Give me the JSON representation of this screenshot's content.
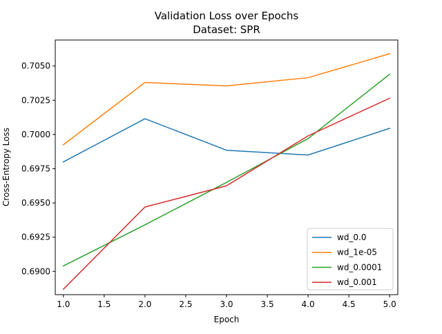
{
  "chart_data": {
    "type": "line",
    "title": "Validation Loss over Epochs",
    "subtitle": "Dataset: SPR",
    "xlabel": "Epoch",
    "ylabel": "Cross-Entropy Loss",
    "x": [
      1,
      2,
      3,
      4,
      5
    ],
    "xlim": [
      0.9,
      5.1
    ],
    "ylim": [
      0.6883,
      0.7069
    ],
    "xticks": [
      "1.0",
      "1.5",
      "2.0",
      "2.5",
      "3.0",
      "3.5",
      "4.0",
      "4.5",
      "5.0"
    ],
    "yticks": [
      "0.6900",
      "0.6925",
      "0.6950",
      "0.6975",
      "0.7000",
      "0.7025",
      "0.7050"
    ],
    "grid": false,
    "legend_position": "lower-right",
    "series": [
      {
        "name": "wd_0.0",
        "color": "#1f77b4",
        "values": [
          0.698,
          0.70115,
          0.69885,
          0.6985,
          0.70045
        ]
      },
      {
        "name": "wd_1e-05",
        "color": "#ff7f0e",
        "values": [
          0.69925,
          0.7038,
          0.70355,
          0.70415,
          0.7059
        ]
      },
      {
        "name": "wd_0.0001",
        "color": "#2ca02c",
        "values": [
          0.6904,
          0.6934,
          0.6965,
          0.6997,
          0.7044
        ]
      },
      {
        "name": "wd_0.001",
        "color": "#d62728",
        "values": [
          0.6887,
          0.6947,
          0.69625,
          0.6999,
          0.70265
        ]
      }
    ]
  }
}
